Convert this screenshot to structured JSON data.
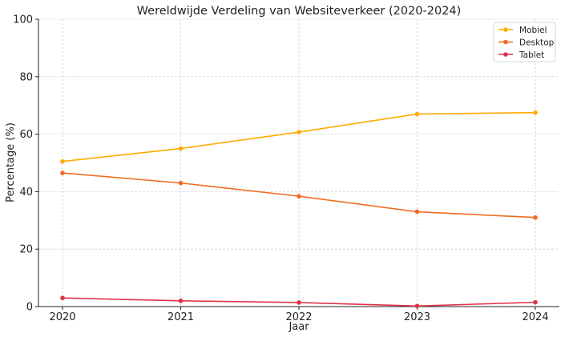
{
  "chart_data": {
    "type": "line",
    "title": "Wereldwijde Verdeling van Websiteverkeer (2020-2024)",
    "xlabel": "Jaar",
    "ylabel": "Percentage (%)",
    "x": [
      2020,
      2021,
      2022,
      2023,
      2024
    ],
    "x_tick_labels": [
      "2020",
      "2021",
      "2022",
      "2023",
      "2024"
    ],
    "ylim": [
      0,
      100
    ],
    "y_ticks": [
      0,
      20,
      40,
      60,
      80,
      100
    ],
    "y_tick_labels": [
      "0",
      "20",
      "40",
      "60",
      "80",
      "100"
    ],
    "grid": true,
    "legend_position": "top-right",
    "series": [
      {
        "name": "Mobiel",
        "color": "#ffaa00",
        "values": [
          50.5,
          55.0,
          60.7,
          67.0,
          67.5
        ]
      },
      {
        "name": "Desktop",
        "color": "#f26b21",
        "values": [
          46.5,
          43.0,
          38.4,
          33.0,
          31.0
        ]
      },
      {
        "name": "Tablet",
        "color": "#e03248",
        "values": [
          3.0,
          2.0,
          1.4,
          0.2,
          1.5
        ]
      }
    ]
  }
}
